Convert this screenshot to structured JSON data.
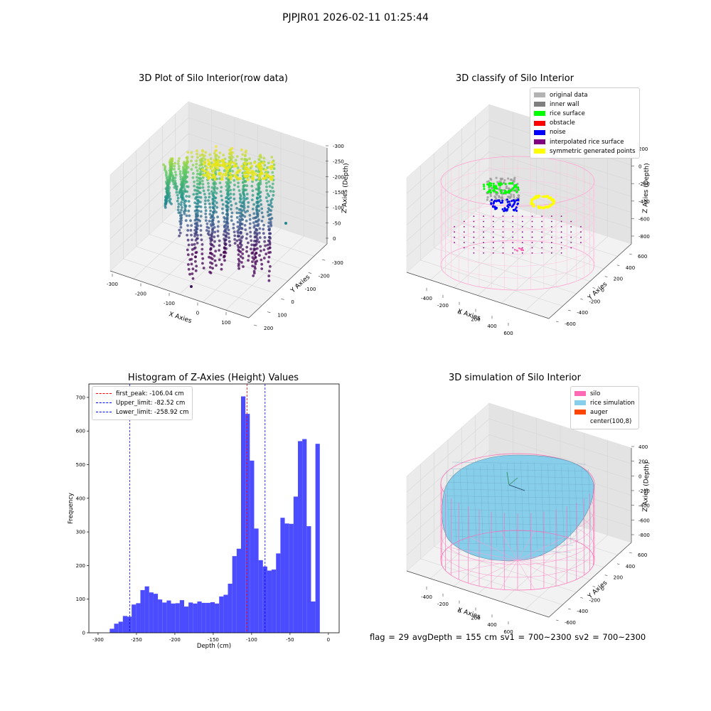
{
  "suptitle": "PJPJR01 2026-02-11 01:25:44",
  "status_text": "flag = 29  avgDepth = 155 cm  sv1 = 700~2300  sv2 = 700~2300",
  "chart_data": [
    {
      "type": "scatter",
      "title": "3D Plot of Silo Interior(row data)",
      "xlabel": "X Axies",
      "ylabel": "Y Axies",
      "zlabel": "Z Axies (Depth)",
      "x_ticks": [
        -300,
        -200,
        -100,
        0,
        100
      ],
      "y_ticks": [
        -300,
        -200,
        -100,
        0,
        100,
        200
      ],
      "z_ticks": [
        -300,
        -250,
        -200,
        -150,
        -100,
        -50,
        0
      ],
      "xlim": [
        -300,
        150
      ],
      "ylim": [
        -300,
        250
      ],
      "zlim": [
        -320,
        0
      ],
      "colormap": "viridis"
    },
    {
      "type": "scatter",
      "title": "3D classify of Silo Interior",
      "xlabel": "X Axies",
      "ylabel": "Y Axies",
      "zlabel": "Z Axies (Depth)",
      "x_ticks": [
        -400,
        -200,
        0,
        200,
        400,
        600
      ],
      "y_ticks": [
        -600,
        -400,
        -200,
        0,
        200,
        400,
        600
      ],
      "z_ticks": [
        -800,
        -600,
        -400,
        -200,
        0,
        200
      ],
      "legend": [
        {
          "name": "original data",
          "color": "#b3b3b3"
        },
        {
          "name": "inner wall",
          "color": "#7f7f7f"
        },
        {
          "name": "rice surface",
          "color": "#00ff00"
        },
        {
          "name": "obstacle",
          "color": "#ff0000"
        },
        {
          "name": "noise",
          "color": "#0000ff"
        },
        {
          "name": "interpolated rice surface",
          "color": "#800080"
        },
        {
          "name": "symmetric generated points",
          "color": "#ffff00"
        }
      ]
    },
    {
      "type": "bar",
      "title": "Histogram of Z-Axies (Height) Values",
      "xlabel": "Depth (cm)",
      "ylabel": "Frequency",
      "xlim": [
        -312,
        14
      ],
      "ylim": [
        0,
        740
      ],
      "x_ticks": [
        -300,
        -250,
        -200,
        -150,
        -100,
        -50,
        0
      ],
      "y_ticks": [
        0,
        100,
        200,
        300,
        400,
        500,
        600,
        700
      ],
      "bar_color": "#4b4bff",
      "bin_start": -284.8,
      "bin_width": 5.7,
      "values": [
        12,
        27,
        33,
        50,
        48,
        84,
        88,
        127,
        138,
        120,
        116,
        99,
        90,
        96,
        87,
        88,
        97,
        78,
        90,
        87,
        93,
        89,
        89,
        91,
        87,
        108,
        113,
        146,
        228,
        250,
        703,
        651,
        512,
        310,
        216,
        197,
        185,
        188,
        236,
        342,
        325,
        324,
        405,
        570,
        576,
        317,
        93,
        562
      ],
      "lines": [
        {
          "label": "first_peak: -106.04 cm",
          "value": -106.04,
          "color": "#ff0000"
        },
        {
          "label": "Upper_limit: -82.52 cm",
          "value": -82.52,
          "color": "#0000ff"
        },
        {
          "label": "Lower_limit: -258.92 cm",
          "value": -258.92,
          "color": "#0000ff"
        }
      ]
    },
    {
      "type": "area",
      "title": "3D simulation of Silo Interior",
      "xlabel": "X Axies",
      "ylabel": "Y Axies",
      "zlabel": "Z Axies (Depth)",
      "x_ticks": [
        -400,
        -200,
        0,
        200,
        400,
        600
      ],
      "y_ticks": [
        -600,
        -400,
        -200,
        0,
        200,
        400,
        600
      ],
      "z_ticks": [
        -800,
        -600,
        -400,
        -200,
        0,
        200,
        400
      ],
      "legend": [
        {
          "name": "silo",
          "color": "#ff69b4"
        },
        {
          "name": "rice simulation",
          "color": "#87ceeb"
        },
        {
          "name": "auger",
          "color": "#ff4500"
        },
        {
          "name": "center(100,8)",
          "color": ""
        }
      ]
    }
  ]
}
